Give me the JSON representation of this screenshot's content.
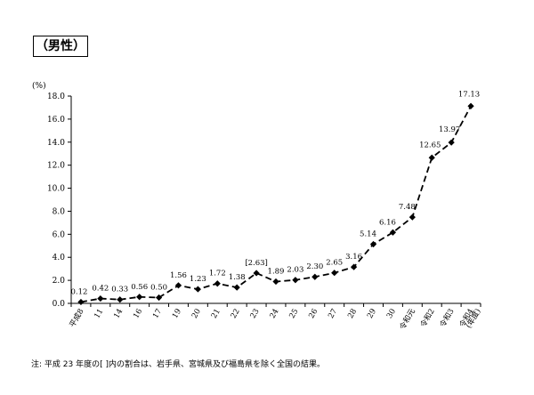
{
  "chart_data": {
    "type": "line",
    "title": "（男性）",
    "ylabel": "(%)",
    "xunit": "(年度)",
    "ylim": [
      0,
      18
    ],
    "yticks": [
      "0.0",
      "2.0",
      "4.0",
      "6.0",
      "8.0",
      "10.0",
      "12.0",
      "14.0",
      "16.0",
      "18.0"
    ],
    "grid": false,
    "categories": [
      "平成8",
      "11",
      "14",
      "16",
      "17",
      "19",
      "20",
      "21",
      "22",
      "23",
      "24",
      "25",
      "26",
      "27",
      "28",
      "29",
      "30",
      "令和元",
      "令和2",
      "令和3",
      "令和4"
    ],
    "series": [
      {
        "values": [
          0.12,
          0.42,
          0.33,
          0.56,
          0.5,
          1.56,
          1.23,
          1.72,
          1.38,
          2.63,
          1.89,
          2.03,
          2.3,
          2.65,
          3.16,
          5.14,
          6.16,
          7.48,
          12.65,
          13.97,
          17.13
        ],
        "labels": [
          "0.12",
          "0.42",
          "0.33",
          "0.56",
          "0.50",
          "1.56",
          "1.23",
          "1.72",
          "1.38",
          "[2.63]",
          "1.89",
          "2.03",
          "2.30",
          "2.65",
          "3.16",
          "5.14",
          "6.16",
          "7.48",
          "12.65",
          "13.97",
          "17.13"
        ]
      }
    ],
    "line_style": "dashed",
    "marker": "diamond",
    "note": "注: 平成 23 年度の[ ]内の割合は、岩手県、宮城県及び福島県を除く全国の結果。"
  }
}
